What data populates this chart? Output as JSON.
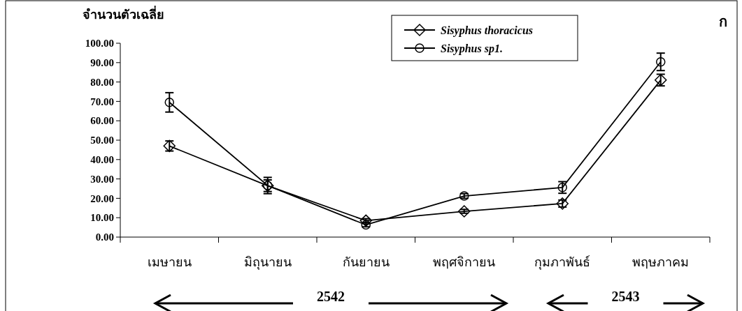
{
  "chart_data": {
    "type": "line",
    "ylabel": "จำนวนตัวเฉลี่ย",
    "categories": [
      "เมษายน",
      "มิถุนายน",
      "กันยายน",
      "พฤศจิกายน",
      "กุมภาพันธ์",
      "พฤษภาคม"
    ],
    "series": [
      {
        "name": "Sisyphus thoracicus",
        "color": "#000000",
        "marker": "diamond",
        "values": [
          47,
          26.5,
          8.5,
          13.3,
          17.3,
          81
        ],
        "errors": [
          2.6,
          3,
          1,
          1,
          1.8,
          3
        ]
      },
      {
        "name": "Sisyphus sp1.",
        "color": "#000000",
        "marker": "circle",
        "values": [
          69.5,
          26.6,
          6.3,
          21.2,
          25.6,
          90.4
        ],
        "errors": [
          5,
          4.2,
          1,
          1.2,
          3,
          4.5
        ]
      }
    ],
    "ylim": [
      0,
      100
    ],
    "yticks": [
      {
        "value": 0,
        "label": "0.00"
      },
      {
        "value": 10,
        "label": "10.00"
      },
      {
        "value": 20,
        "label": "20.00"
      },
      {
        "value": 30,
        "label": "30.00"
      },
      {
        "value": 40,
        "label": "40.00"
      },
      {
        "value": 50,
        "label": "50.00"
      },
      {
        "value": 60,
        "label": "60.00"
      },
      {
        "value": 70,
        "label": "70.00"
      },
      {
        "value": 80,
        "label": "80.00"
      },
      {
        "value": 90,
        "label": "90.00"
      },
      {
        "value": 100,
        "label": "100.00"
      }
    ],
    "annotations": [
      "ก",
      "2542",
      "2543"
    ],
    "grid": false,
    "legend": "top right",
    "line_style": "solid"
  }
}
